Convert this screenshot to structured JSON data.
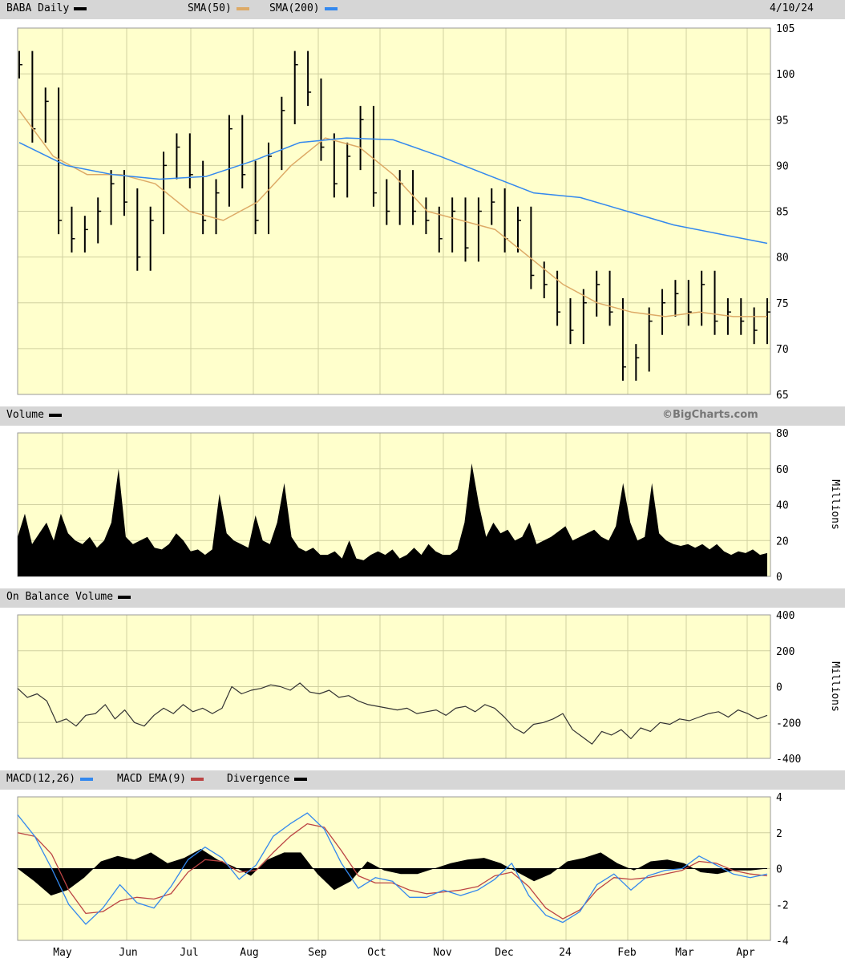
{
  "header": {
    "ticker": "BABA Daily",
    "sma50": "SMA(50)",
    "sma200": "SMA(200)",
    "date": "4/10/24"
  },
  "volume_header": {
    "title": "Volume",
    "credit": "©BigCharts.com"
  },
  "obv_header": {
    "title": "On Balance Volume"
  },
  "macd_header": {
    "macd": "MACD(12,26)",
    "ema": "MACD EMA(9)",
    "div": "Divergence"
  },
  "colors": {
    "bg": "#ffffcc",
    "grid": "#d0d0a0",
    "sma50": "#ddaa66",
    "sma200": "#3388ee",
    "ema": "#bb4444"
  },
  "chart_data": [
    {
      "type": "line",
      "title": "BABA Daily",
      "ylim": [
        65,
        105
      ],
      "yticks": [
        65,
        70,
        75,
        80,
        85,
        90,
        95,
        100,
        105
      ],
      "x_labels": [
        "May",
        "Jun",
        "Jul",
        "Aug",
        "Sep",
        "Oct",
        "Nov",
        "Dec",
        "24",
        "Feb",
        "Mar",
        "Apr"
      ],
      "price": [
        101,
        94,
        97,
        84,
        82,
        83,
        85,
        88,
        86,
        80,
        84,
        90,
        92,
        89,
        84,
        87,
        94,
        89,
        84,
        91,
        96,
        101,
        98,
        92,
        88,
        91,
        95,
        87,
        85,
        88,
        85,
        84,
        82,
        85,
        81,
        85,
        86,
        82,
        84,
        78,
        77,
        74,
        72,
        75,
        77,
        74,
        68,
        69,
        73,
        75,
        76,
        74,
        77,
        73,
        74,
        73,
        72,
        74
      ],
      "series": [
        {
          "name": "SMA(50)",
          "values": [
            96,
            91,
            89,
            89,
            88,
            85,
            84,
            86,
            90,
            93,
            92,
            89,
            85,
            84,
            83,
            80,
            77,
            75,
            74,
            73.5,
            74,
            73.5,
            73.5
          ]
        },
        {
          "name": "SMA(200)",
          "values": [
            92.5,
            90,
            89,
            88.5,
            88.8,
            90.5,
            92.5,
            93,
            92.8,
            91,
            89,
            87,
            86.5,
            85,
            83.5,
            82.5,
            81.5
          ]
        }
      ]
    },
    {
      "type": "bar",
      "title": "Volume",
      "ylabel": "Millions",
      "ylim": [
        0,
        80
      ],
      "yticks": [
        0,
        20,
        40,
        60,
        80
      ],
      "values": [
        22,
        35,
        18,
        24,
        30,
        20,
        35,
        24,
        20,
        18,
        22,
        16,
        20,
        30,
        60,
        22,
        18,
        20,
        22,
        16,
        15,
        18,
        24,
        20,
        14,
        15,
        12,
        15,
        46,
        24,
        20,
        18,
        16,
        34,
        20,
        18,
        30,
        52,
        22,
        16,
        14,
        16,
        12,
        12,
        14,
        10,
        20,
        10,
        9,
        12,
        14,
        12,
        15,
        10,
        12,
        16,
        12,
        18,
        14,
        12,
        12,
        15,
        30,
        63,
        40,
        22,
        30,
        24,
        26,
        20,
        22,
        30,
        18,
        20,
        22,
        25,
        28,
        20,
        22,
        24,
        26,
        22,
        20,
        28,
        52,
        30,
        20,
        22,
        52,
        24,
        20,
        18,
        17,
        18,
        16,
        18,
        15,
        18,
        14,
        12,
        14,
        13,
        15,
        12,
        13
      ]
    },
    {
      "type": "line",
      "title": "On Balance Volume",
      "ylabel": "Millions",
      "ylim": [
        -400,
        400
      ],
      "yticks": [
        -400,
        -200,
        0,
        200,
        400
      ],
      "values": [
        -10,
        -60,
        -40,
        -80,
        -200,
        -180,
        -220,
        -160,
        -150,
        -100,
        -180,
        -130,
        -200,
        -220,
        -160,
        -120,
        -150,
        -100,
        -140,
        -120,
        -150,
        -120,
        0,
        -40,
        -20,
        -10,
        10,
        0,
        -20,
        20,
        -30,
        -40,
        -20,
        -60,
        -50,
        -80,
        -100,
        -110,
        -120,
        -130,
        -120,
        -150,
        -140,
        -130,
        -160,
        -120,
        -110,
        -140,
        -100,
        -120,
        -170,
        -230,
        -260,
        -210,
        -200,
        -180,
        -150,
        -240,
        -280,
        -320,
        -250,
        -270,
        -240,
        -290,
        -230,
        -250,
        -200,
        -210,
        -180,
        -190,
        -170,
        -150,
        -140,
        -170,
        -130,
        -150,
        -180,
        -160
      ]
    },
    {
      "type": "line",
      "title": "MACD(12,26)",
      "ylim": [
        -4,
        4
      ],
      "yticks": [
        -4,
        -2,
        0,
        2,
        4
      ],
      "x_labels": [
        "May",
        "Jun",
        "Jul",
        "Aug",
        "Sep",
        "Oct",
        "Nov",
        "Dec",
        "24",
        "Feb",
        "Mar",
        "Apr"
      ],
      "series": [
        {
          "name": "MACD(12,26)",
          "values": [
            3.0,
            1.8,
            0.0,
            -2.0,
            -3.1,
            -2.2,
            -0.9,
            -1.9,
            -2.2,
            -1.0,
            0.5,
            1.2,
            0.6,
            -0.6,
            0.2,
            1.8,
            2.5,
            3.1,
            2.2,
            0.3,
            -1.1,
            -0.5,
            -0.7,
            -1.6,
            -1.6,
            -1.2,
            -1.5,
            -1.2,
            -0.6,
            0.3,
            -1.5,
            -2.6,
            -3.0,
            -2.4,
            -0.9,
            -0.3,
            -1.2,
            -0.4,
            -0.1,
            0.0,
            0.7,
            0.2,
            -0.3,
            -0.5,
            -0.3
          ]
        },
        {
          "name": "MACD EMA(9)",
          "values": [
            2.0,
            1.8,
            0.8,
            -1.2,
            -2.5,
            -2.4,
            -1.8,
            -1.6,
            -1.7,
            -1.4,
            -0.2,
            0.5,
            0.4,
            -0.2,
            -0.1,
            0.9,
            1.8,
            2.5,
            2.3,
            1.0,
            -0.4,
            -0.8,
            -0.8,
            -1.2,
            -1.4,
            -1.3,
            -1.2,
            -1.0,
            -0.4,
            -0.2,
            -1.0,
            -2.2,
            -2.8,
            -2.3,
            -1.2,
            -0.5,
            -0.6,
            -0.5,
            -0.3,
            -0.1,
            0.4,
            0.3,
            -0.1,
            -0.3,
            -0.4
          ]
        },
        {
          "name": "Divergence",
          "values": [
            0.0,
            -0.7,
            -1.5,
            -1.2,
            -0.5,
            0.4,
            0.7,
            0.5,
            0.9,
            0.3,
            0.6,
            1.1,
            0.5,
            0.1,
            -0.4,
            0.5,
            0.9,
            0.9,
            -0.3,
            -1.2,
            -0.7,
            0.4,
            -0.1,
            -0.3,
            -0.3,
            0.0,
            0.3,
            0.5,
            0.6,
            0.3,
            -0.2,
            -0.7,
            -0.3,
            0.4,
            0.6,
            0.9,
            0.3,
            -0.1,
            0.4,
            0.5,
            0.3,
            -0.2,
            -0.3,
            -0.1,
            -0.1,
            0.0
          ]
        }
      ]
    }
  ]
}
